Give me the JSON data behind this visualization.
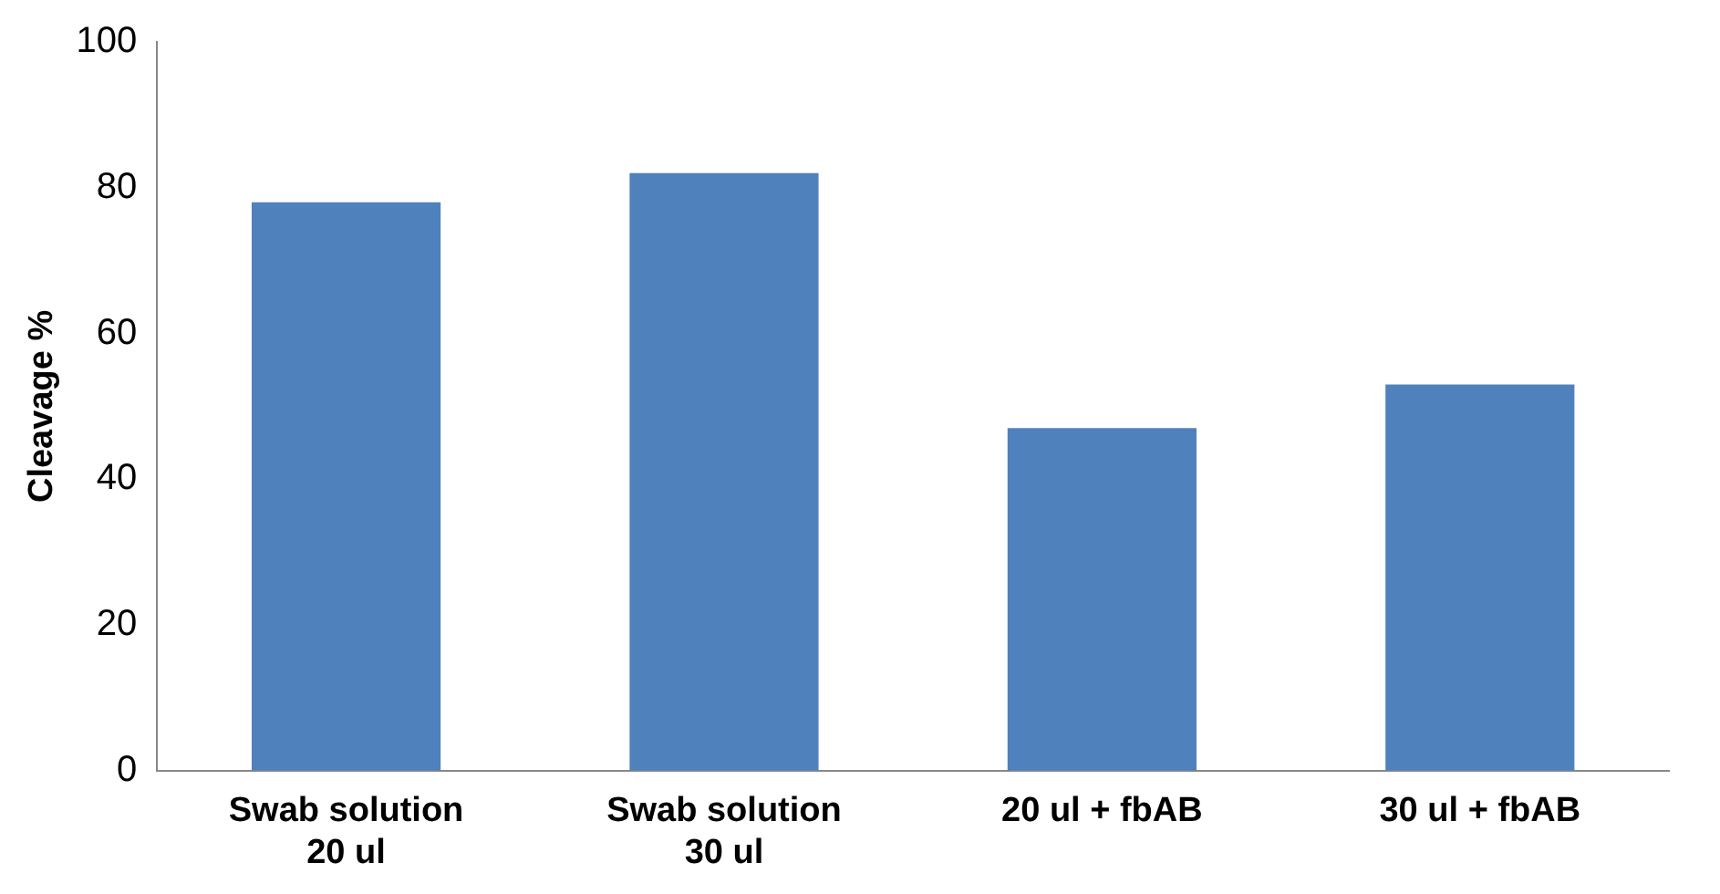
{
  "chart_data": {
    "type": "bar",
    "ylabel": "Cleavage %",
    "categories": [
      "Swab solution 20 ul",
      "Swab solution 30 ul",
      "20 ul + fbAB",
      "30 ul + fbAB"
    ],
    "values": [
      78,
      82,
      47,
      53
    ],
    "color": "#4f81bd",
    "ylim": [
      0,
      100
    ],
    "yticks": [
      0,
      20,
      40,
      60,
      80,
      100
    ],
    "grid": false,
    "legend": false
  }
}
